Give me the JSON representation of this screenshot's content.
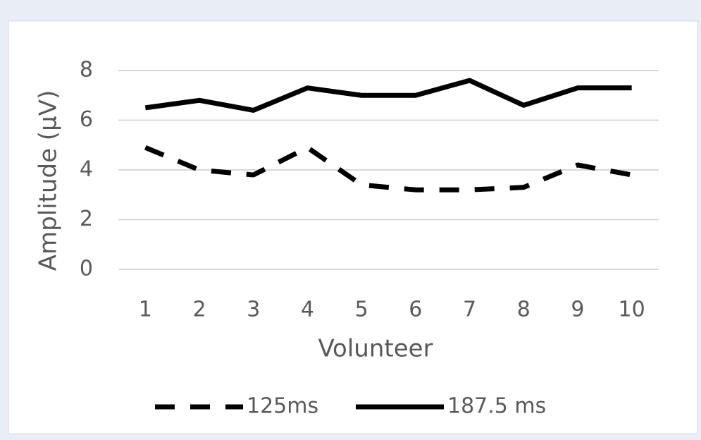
{
  "chart_data": {
    "type": "line",
    "x_label": "Volunteer",
    "y_label": "Amplitude (µV)",
    "categories": [
      "1",
      "2",
      "3",
      "4",
      "5",
      "6",
      "7",
      "8",
      "9",
      "10"
    ],
    "series": [
      {
        "name": "125ms",
        "color": "#000000",
        "dash": true,
        "values": [
          4.9,
          4.0,
          3.8,
          4.9,
          3.4,
          3.2,
          3.2,
          3.3,
          4.2,
          3.8
        ]
      },
      {
        "name": "187.5 ms",
        "color": "#000000",
        "dash": false,
        "values": [
          6.5,
          6.8,
          6.4,
          7.3,
          7.0,
          7.0,
          7.6,
          6.6,
          7.3,
          7.3
        ]
      }
    ],
    "ylim": [
      0,
      8
    ],
    "yticks": [
      0,
      2,
      4,
      6,
      8
    ],
    "grid": true,
    "legend": "bottom"
  }
}
